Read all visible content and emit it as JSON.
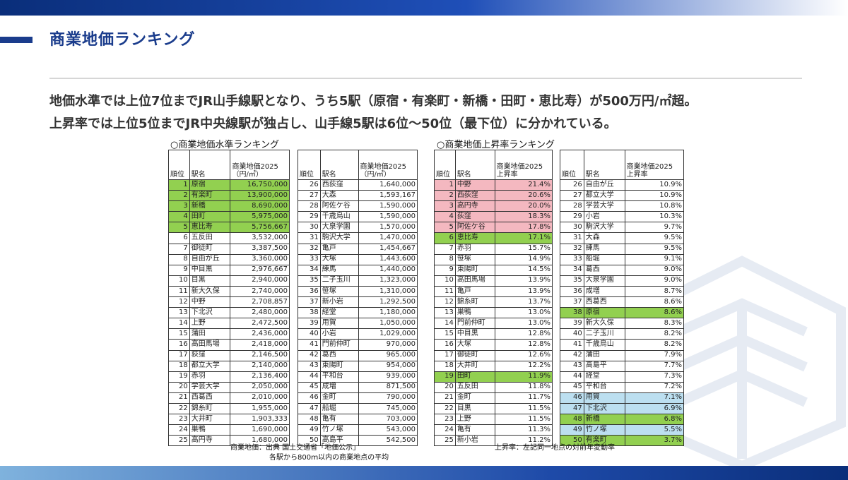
{
  "slide": {
    "title": "商業地価ランキング",
    "lead_line1": "地価水準では上位7位までJR山手線駅となり、うち5駅（原宿・有楽町・新橋・田町・恵比寿）が500万円/㎡超。",
    "lead_line2": "上昇率では上位5位までJR中央線駅が独占し、山手線5駅は6位～50位（最下位）に分かれている。"
  },
  "level_ranking": {
    "caption": "○商業地価水準ランキング",
    "headers": {
      "rank": "順位",
      "station": "駅名",
      "value_line1": "商業地価2025",
      "value_line2": "（円/㎡）"
    },
    "rows_left": [
      {
        "rank": "1",
        "station": "原宿",
        "value": "16,750,000",
        "hl": "g"
      },
      {
        "rank": "2",
        "station": "有楽町",
        "value": "13,900,000",
        "hl": "g"
      },
      {
        "rank": "3",
        "station": "新橋",
        "value": "8,690,000",
        "hl": "g"
      },
      {
        "rank": "4",
        "station": "田町",
        "value": "5,975,000",
        "hl": "g"
      },
      {
        "rank": "5",
        "station": "恵比寿",
        "value": "5,756,667",
        "hl": "g"
      },
      {
        "rank": "6",
        "station": "五反田",
        "value": "3,532,000",
        "hl": ""
      },
      {
        "rank": "7",
        "station": "御徒町",
        "value": "3,387,500",
        "hl": ""
      },
      {
        "rank": "8",
        "station": "自由が丘",
        "value": "3,360,000",
        "hl": ""
      },
      {
        "rank": "9",
        "station": "中目黒",
        "value": "2,976,667",
        "hl": ""
      },
      {
        "rank": "10",
        "station": "目黒",
        "value": "2,940,000",
        "hl": ""
      },
      {
        "rank": "11",
        "station": "新大久保",
        "value": "2,740,000",
        "hl": ""
      },
      {
        "rank": "12",
        "station": "中野",
        "value": "2,708,857",
        "hl": ""
      },
      {
        "rank": "13",
        "station": "下北沢",
        "value": "2,480,000",
        "hl": ""
      },
      {
        "rank": "14",
        "station": "上野",
        "value": "2,472,500",
        "hl": ""
      },
      {
        "rank": "15",
        "station": "蒲田",
        "value": "2,436,000",
        "hl": ""
      },
      {
        "rank": "16",
        "station": "高田馬場",
        "value": "2,418,000",
        "hl": ""
      },
      {
        "rank": "17",
        "station": "荻窪",
        "value": "2,146,500",
        "hl": ""
      },
      {
        "rank": "18",
        "station": "都立大学",
        "value": "2,140,000",
        "hl": ""
      },
      {
        "rank": "19",
        "station": "赤羽",
        "value": "2,136,400",
        "hl": ""
      },
      {
        "rank": "20",
        "station": "学芸大学",
        "value": "2,050,000",
        "hl": ""
      },
      {
        "rank": "21",
        "station": "西葛西",
        "value": "2,010,000",
        "hl": ""
      },
      {
        "rank": "22",
        "station": "錦糸町",
        "value": "1,955,000",
        "hl": ""
      },
      {
        "rank": "23",
        "station": "大井町",
        "value": "1,903,333",
        "hl": ""
      },
      {
        "rank": "24",
        "station": "巣鴨",
        "value": "1,690,000",
        "hl": ""
      },
      {
        "rank": "25",
        "station": "高円寺",
        "value": "1,680,000",
        "hl": ""
      }
    ],
    "rows_right": [
      {
        "rank": "26",
        "station": "西荻窪",
        "value": "1,640,000",
        "hl": ""
      },
      {
        "rank": "27",
        "station": "大森",
        "value": "1,593,167",
        "hl": ""
      },
      {
        "rank": "28",
        "station": "阿佐ケ谷",
        "value": "1,590,000",
        "hl": ""
      },
      {
        "rank": "29",
        "station": "千歳烏山",
        "value": "1,590,000",
        "hl": ""
      },
      {
        "rank": "30",
        "station": "大泉学園",
        "value": "1,570,000",
        "hl": ""
      },
      {
        "rank": "31",
        "station": "駒沢大学",
        "value": "1,470,000",
        "hl": ""
      },
      {
        "rank": "32",
        "station": "亀戸",
        "value": "1,454,667",
        "hl": ""
      },
      {
        "rank": "33",
        "station": "大塚",
        "value": "1,443,600",
        "hl": ""
      },
      {
        "rank": "34",
        "station": "練馬",
        "value": "1,440,000",
        "hl": ""
      },
      {
        "rank": "35",
        "station": "二子玉川",
        "value": "1,323,000",
        "hl": ""
      },
      {
        "rank": "36",
        "station": "笹塚",
        "value": "1,310,000",
        "hl": ""
      },
      {
        "rank": "37",
        "station": "新小岩",
        "value": "1,292,500",
        "hl": ""
      },
      {
        "rank": "38",
        "station": "経堂",
        "value": "1,180,000",
        "hl": ""
      },
      {
        "rank": "39",
        "station": "用賀",
        "value": "1,050,000",
        "hl": ""
      },
      {
        "rank": "40",
        "station": "小岩",
        "value": "1,029,000",
        "hl": ""
      },
      {
        "rank": "41",
        "station": "門前仲町",
        "value": "970,000",
        "hl": ""
      },
      {
        "rank": "42",
        "station": "葛西",
        "value": "965,000",
        "hl": ""
      },
      {
        "rank": "43",
        "station": "東陽町",
        "value": "954,000",
        "hl": ""
      },
      {
        "rank": "44",
        "station": "平和台",
        "value": "939,000",
        "hl": ""
      },
      {
        "rank": "45",
        "station": "成増",
        "value": "871,500",
        "hl": ""
      },
      {
        "rank": "46",
        "station": "金町",
        "value": "790,000",
        "hl": ""
      },
      {
        "rank": "47",
        "station": "船堀",
        "value": "745,000",
        "hl": ""
      },
      {
        "rank": "48",
        "station": "亀有",
        "value": "703,000",
        "hl": ""
      },
      {
        "rank": "49",
        "station": "竹ノ塚",
        "value": "543,000",
        "hl": ""
      },
      {
        "rank": "50",
        "station": "高島平",
        "value": "542,500",
        "hl": ""
      }
    ],
    "note_line1": "商業地価：出典 国土交通省「地価公示」",
    "note_line2": "各駅から800ｍ以内の商業地点の平均"
  },
  "growth_ranking": {
    "caption": "○商業地価上昇率ランキング",
    "headers": {
      "rank": "順位",
      "station": "駅名",
      "value_line1": "商業地価2025",
      "value_line2": "上昇率"
    },
    "rows_left": [
      {
        "rank": "1",
        "station": "中野",
        "value": "21.4%",
        "hl": "p"
      },
      {
        "rank": "2",
        "station": "西荻窪",
        "value": "20.6%",
        "hl": "p"
      },
      {
        "rank": "3",
        "station": "高円寺",
        "value": "20.0%",
        "hl": "p"
      },
      {
        "rank": "4",
        "station": "荻窪",
        "value": "18.3%",
        "hl": "p"
      },
      {
        "rank": "5",
        "station": "阿佐ケ谷",
        "value": "17.8%",
        "hl": "p"
      },
      {
        "rank": "6",
        "station": "恵比寿",
        "value": "17.1%",
        "hl": "g"
      },
      {
        "rank": "7",
        "station": "赤羽",
        "value": "15.7%",
        "hl": ""
      },
      {
        "rank": "8",
        "station": "笹塚",
        "value": "14.9%",
        "hl": ""
      },
      {
        "rank": "9",
        "station": "東陽町",
        "value": "14.5%",
        "hl": ""
      },
      {
        "rank": "10",
        "station": "高田馬場",
        "value": "13.9%",
        "hl": ""
      },
      {
        "rank": "11",
        "station": "亀戸",
        "value": "13.9%",
        "hl": ""
      },
      {
        "rank": "12",
        "station": "錦糸町",
        "value": "13.7%",
        "hl": ""
      },
      {
        "rank": "13",
        "station": "巣鴨",
        "value": "13.0%",
        "hl": ""
      },
      {
        "rank": "14",
        "station": "門前仲町",
        "value": "13.0%",
        "hl": ""
      },
      {
        "rank": "15",
        "station": "中目黒",
        "value": "12.8%",
        "hl": ""
      },
      {
        "rank": "16",
        "station": "大塚",
        "value": "12.8%",
        "hl": ""
      },
      {
        "rank": "17",
        "station": "御徒町",
        "value": "12.6%",
        "hl": ""
      },
      {
        "rank": "18",
        "station": "大井町",
        "value": "12.2%",
        "hl": ""
      },
      {
        "rank": "19",
        "station": "田町",
        "value": "11.9%",
        "hl": "g"
      },
      {
        "rank": "20",
        "station": "五反田",
        "value": "11.8%",
        "hl": ""
      },
      {
        "rank": "21",
        "station": "金町",
        "value": "11.7%",
        "hl": ""
      },
      {
        "rank": "22",
        "station": "目黒",
        "value": "11.5%",
        "hl": ""
      },
      {
        "rank": "23",
        "station": "上野",
        "value": "11.5%",
        "hl": ""
      },
      {
        "rank": "24",
        "station": "亀有",
        "value": "11.3%",
        "hl": ""
      },
      {
        "rank": "25",
        "station": "新小岩",
        "value": "11.2%",
        "hl": ""
      }
    ],
    "rows_right": [
      {
        "rank": "26",
        "station": "自由が丘",
        "value": "10.9%",
        "hl": ""
      },
      {
        "rank": "27",
        "station": "都立大学",
        "value": "10.9%",
        "hl": ""
      },
      {
        "rank": "28",
        "station": "学芸大学",
        "value": "10.8%",
        "hl": ""
      },
      {
        "rank": "29",
        "station": "小岩",
        "value": "10.3%",
        "hl": ""
      },
      {
        "rank": "30",
        "station": "駒沢大学",
        "value": "9.7%",
        "hl": ""
      },
      {
        "rank": "31",
        "station": "大森",
        "value": "9.5%",
        "hl": ""
      },
      {
        "rank": "32",
        "station": "練馬",
        "value": "9.5%",
        "hl": ""
      },
      {
        "rank": "33",
        "station": "船堀",
        "value": "9.1%",
        "hl": ""
      },
      {
        "rank": "34",
        "station": "葛西",
        "value": "9.0%",
        "hl": ""
      },
      {
        "rank": "35",
        "station": "大泉学園",
        "value": "9.0%",
        "hl": ""
      },
      {
        "rank": "36",
        "station": "成増",
        "value": "8.7%",
        "hl": ""
      },
      {
        "rank": "37",
        "station": "西葛西",
        "value": "8.6%",
        "hl": ""
      },
      {
        "rank": "38",
        "station": "原宿",
        "value": "8.6%",
        "hl": "g"
      },
      {
        "rank": "39",
        "station": "新大久保",
        "value": "8.3%",
        "hl": ""
      },
      {
        "rank": "40",
        "station": "二子玉川",
        "value": "8.2%",
        "hl": ""
      },
      {
        "rank": "41",
        "station": "千歳烏山",
        "value": "8.2%",
        "hl": ""
      },
      {
        "rank": "42",
        "station": "蒲田",
        "value": "7.9%",
        "hl": ""
      },
      {
        "rank": "43",
        "station": "高島平",
        "value": "7.7%",
        "hl": ""
      },
      {
        "rank": "44",
        "station": "経堂",
        "value": "7.3%",
        "hl": ""
      },
      {
        "rank": "45",
        "station": "平和台",
        "value": "7.2%",
        "hl": ""
      },
      {
        "rank": "46",
        "station": "用賀",
        "value": "7.1%",
        "hl": "b"
      },
      {
        "rank": "47",
        "station": "下北沢",
        "value": "6.9%",
        "hl": "b"
      },
      {
        "rank": "48",
        "station": "新橋",
        "value": "6.8%",
        "hl": "g"
      },
      {
        "rank": "49",
        "station": "竹ノ塚",
        "value": "5.5%",
        "hl": "b"
      },
      {
        "rank": "50",
        "station": "有楽町",
        "value": "3.7%",
        "hl": "g"
      }
    ],
    "note_line1": "上昇率：左記同一地点の対前年変動率"
  },
  "colors": {
    "title": "#1a3c8c",
    "highlight_green": "#92d050",
    "highlight_pink": "#f4b8c0",
    "highlight_blue": "#bcdff0"
  },
  "icons": {
    "watermark": "building-logo-watermark"
  }
}
